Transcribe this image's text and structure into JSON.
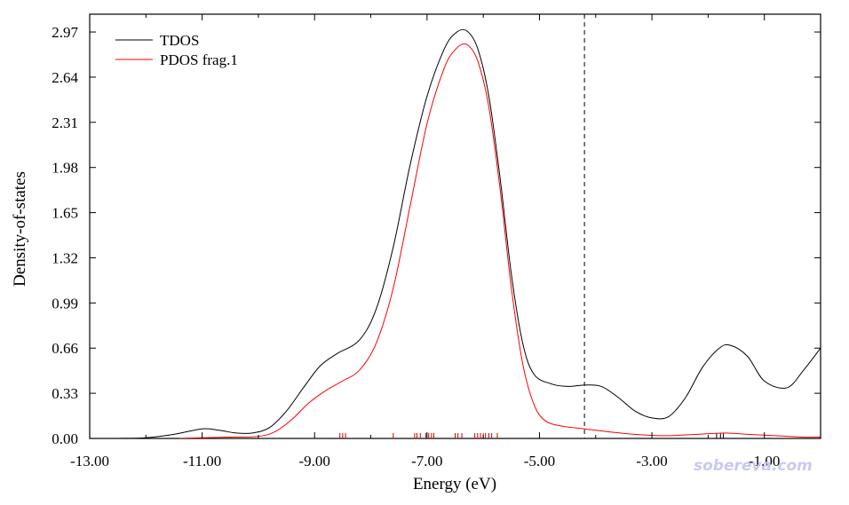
{
  "chart_data": {
    "type": "line",
    "title": "",
    "xlabel": "Energy (eV)",
    "ylabel": "Density-of-states",
    "xlim": [
      -13.0,
      -0.0
    ],
    "ylim": [
      0.0,
      3.1
    ],
    "x_ticks": [
      -13.0,
      -11.0,
      -9.0,
      -7.0,
      -5.0,
      -3.0,
      -1.0
    ],
    "x_tick_labels": [
      "-13.00",
      "-11.00",
      "-9.00",
      "-7.00",
      "-5.00",
      "-3.00",
      "-1.00"
    ],
    "y_ticks": [
      0.0,
      0.33,
      0.66,
      0.99,
      1.32,
      1.65,
      1.98,
      2.31,
      2.64,
      2.97
    ],
    "y_tick_labels": [
      "0.00",
      "0.33",
      "0.66",
      "0.99",
      "1.32",
      "1.65",
      "1.98",
      "2.31",
      "2.64",
      "2.97"
    ],
    "grid": false,
    "legend": "top-left",
    "homo_line_x": -4.2,
    "series": [
      {
        "name": "TDOS",
        "color": "#000000",
        "points": [
          [
            -12.5,
            0.0
          ],
          [
            -12.0,
            0.005
          ],
          [
            -11.5,
            0.03
          ],
          [
            -11.0,
            0.07
          ],
          [
            -10.7,
            0.06
          ],
          [
            -10.4,
            0.04
          ],
          [
            -10.1,
            0.04
          ],
          [
            -9.8,
            0.08
          ],
          [
            -9.5,
            0.2
          ],
          [
            -9.2,
            0.37
          ],
          [
            -8.9,
            0.53
          ],
          [
            -8.6,
            0.62
          ],
          [
            -8.2,
            0.72
          ],
          [
            -7.9,
            0.95
          ],
          [
            -7.6,
            1.4
          ],
          [
            -7.3,
            2.0
          ],
          [
            -7.0,
            2.5
          ],
          [
            -6.7,
            2.84
          ],
          [
            -6.5,
            2.96
          ],
          [
            -6.3,
            2.98
          ],
          [
            -6.1,
            2.85
          ],
          [
            -5.9,
            2.5
          ],
          [
            -5.7,
            1.9
          ],
          [
            -5.5,
            1.2
          ],
          [
            -5.3,
            0.7
          ],
          [
            -5.1,
            0.47
          ],
          [
            -4.8,
            0.4
          ],
          [
            -4.5,
            0.38
          ],
          [
            -4.2,
            0.39
          ],
          [
            -3.9,
            0.38
          ],
          [
            -3.6,
            0.3
          ],
          [
            -3.3,
            0.2
          ],
          [
            -3.0,
            0.15
          ],
          [
            -2.7,
            0.16
          ],
          [
            -2.4,
            0.3
          ],
          [
            -2.1,
            0.52
          ],
          [
            -1.8,
            0.66
          ],
          [
            -1.6,
            0.68
          ],
          [
            -1.3,
            0.6
          ],
          [
            -1.0,
            0.42
          ],
          [
            -0.6,
            0.37
          ],
          [
            -0.3,
            0.5
          ],
          [
            0.0,
            0.66
          ]
        ]
      },
      {
        "name": "PDOS frag.1",
        "color": "#ff0000",
        "points": [
          [
            -11.4,
            0.0
          ],
          [
            -11.0,
            0.005
          ],
          [
            -10.5,
            0.01
          ],
          [
            -10.0,
            0.015
          ],
          [
            -9.7,
            0.05
          ],
          [
            -9.4,
            0.14
          ],
          [
            -9.1,
            0.26
          ],
          [
            -8.8,
            0.35
          ],
          [
            -8.5,
            0.42
          ],
          [
            -8.2,
            0.5
          ],
          [
            -7.9,
            0.7
          ],
          [
            -7.6,
            1.1
          ],
          [
            -7.3,
            1.7
          ],
          [
            -7.0,
            2.3
          ],
          [
            -6.7,
            2.7
          ],
          [
            -6.5,
            2.84
          ],
          [
            -6.3,
            2.88
          ],
          [
            -6.1,
            2.76
          ],
          [
            -5.9,
            2.42
          ],
          [
            -5.7,
            1.82
          ],
          [
            -5.5,
            1.1
          ],
          [
            -5.3,
            0.55
          ],
          [
            -5.1,
            0.25
          ],
          [
            -4.9,
            0.13
          ],
          [
            -4.6,
            0.09
          ],
          [
            -4.2,
            0.07
          ],
          [
            -3.8,
            0.05
          ],
          [
            -3.3,
            0.03
          ],
          [
            -2.8,
            0.02
          ],
          [
            -2.2,
            0.03
          ],
          [
            -1.7,
            0.04
          ],
          [
            -1.3,
            0.03
          ],
          [
            -0.8,
            0.02
          ],
          [
            -0.3,
            0.01
          ],
          [
            0.0,
            0.01
          ]
        ]
      }
    ],
    "levels_red": [
      -8.55,
      -8.5,
      -8.45,
      -7.6,
      -7.22,
      -7.18,
      -7.12,
      -7.02,
      -6.97,
      -6.92,
      -6.88,
      -6.5,
      -6.45,
      -6.38,
      -6.15,
      -6.1,
      -6.05,
      -6.0,
      -5.96,
      -5.9,
      -5.85,
      -5.75
    ],
    "levels_black": [
      -1.85,
      -1.78,
      -1.73
    ]
  },
  "watermark": "sobereva.com"
}
